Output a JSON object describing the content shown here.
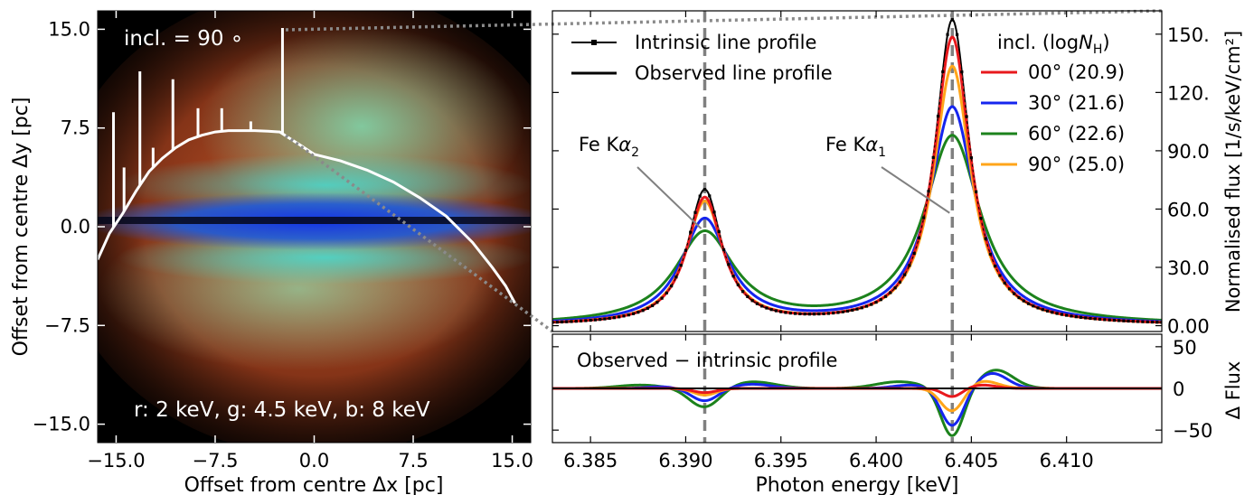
{
  "chart_data": [
    {
      "type": "image",
      "panel": "left",
      "xlabel": "Offset from centre Δx [pc]",
      "ylabel": "Offset from centre Δy [pc]",
      "xlim": [
        -16.4,
        16.4
      ],
      "ylim": [
        -16.4,
        16.4
      ],
      "xticks": [
        "−15.0",
        "−7.5",
        "0.0",
        "7.5",
        "15.0"
      ],
      "yticks": [
        "15.0",
        "7.5",
        "0.0",
        "−7.5",
        "−15.0"
      ],
      "annotations": {
        "inclination": "incl. = 90 ∘",
        "channels": "r: 2 keV, g: 4.5 keV, b: 8 keV"
      },
      "colors": {
        "red_channel": "#c0502a",
        "green_channel": "#66d6a8",
        "blue_channel": "#1a3fd6",
        "overlay_line": "#ffffff"
      },
      "overlay_profile": {
        "x": [
          -16.4,
          -15.5,
          -14.5,
          -13.5,
          -12.5,
          -11.5,
          -10.5,
          -9.5,
          -8.5,
          -7.5,
          -6.5,
          -5.5,
          -4.5,
          -3.5,
          -2.6,
          -2.0,
          -1.2,
          0.0,
          2.0,
          4.0,
          6.0,
          8.0,
          10.0,
          12.0,
          13.5,
          14.5,
          15.2
        ],
        "y": [
          -2.5,
          -0.5,
          1.0,
          2.7,
          4.2,
          5.2,
          6.0,
          6.6,
          6.95,
          7.2,
          7.3,
          7.3,
          7.3,
          7.25,
          7.2,
          6.8,
          6.3,
          5.5,
          5.0,
          4.3,
          3.4,
          2.2,
          0.8,
          -1.2,
          -3.1,
          -4.5,
          -5.8
        ]
      },
      "overlay_spikes": [
        {
          "x": -15.2,
          "y_top": 8.7
        },
        {
          "x": -14.4,
          "y_top": 4.5
        },
        {
          "x": -13.2,
          "y_top": 11.8
        },
        {
          "x": -12.2,
          "y_top": 6.0
        },
        {
          "x": -10.7,
          "y_top": 11.2
        },
        {
          "x": -8.8,
          "y_top": 9.0
        },
        {
          "x": -7.0,
          "y_top": 9.0
        },
        {
          "x": -4.8,
          "y_top": 8.0
        },
        {
          "x": -2.4,
          "y_top": 15.1
        }
      ]
    },
    {
      "type": "line",
      "panel": "top-right",
      "ylabel": "Normalised flux [1/s/keV/cm²]",
      "xlim": [
        6.383,
        6.415
      ],
      "ylim": [
        -3,
        162
      ],
      "yticks": [
        0,
        30,
        60,
        90,
        120,
        150
      ],
      "ytick_labels": [
        "0.00",
        "30.0",
        "60.0",
        "90.0",
        "120.",
        "150."
      ],
      "legend_left": [
        {
          "label": "Intrinsic line profile",
          "style": "line-with-square-markers"
        },
        {
          "label": "Observed line profile",
          "style": "line"
        }
      ],
      "legend_right_title": "incl. (logNH)",
      "annotations": [
        {
          "label": "Fe Kα2",
          "arrow_to": [
            6.391,
            50
          ]
        },
        {
          "label": "Fe Kα1",
          "arrow_to": [
            6.404,
            58
          ]
        }
      ],
      "vlines": [
        6.391,
        6.404
      ],
      "intrinsic": {
        "peaks": [
          {
            "center": 6.391,
            "height": 69,
            "hwhm": 0.0011
          },
          {
            "center": 6.404,
            "height": 157,
            "hwhm": 0.0011
          }
        ],
        "marker_step": 0.00025
      },
      "series": [
        {
          "name": "00° (20.9)",
          "color": "#e8191d",
          "peaks": [
            {
              "center": 6.391,
              "height": 65,
              "hwhm": 0.00115
            },
            {
              "center": 6.404,
              "height": 148,
              "hwhm": 0.00115
            }
          ]
        },
        {
          "name": "30° (21.6)",
          "color": "#1525ee",
          "peaks": [
            {
              "center": 6.391,
              "height": 54,
              "hwhm": 0.0015
            },
            {
              "center": 6.404,
              "height": 112,
              "hwhm": 0.00145
            }
          ]
        },
        {
          "name": "60° (22.6)",
          "color": "#1c821c",
          "peaks": [
            {
              "center": 6.391,
              "height": 47,
              "hwhm": 0.0019
            },
            {
              "center": 6.404,
              "height": 97,
              "hwhm": 0.0018
            }
          ]
        },
        {
          "name": "90° (25.0)",
          "color": "#ffa51a",
          "peaks": [
            {
              "center": 6.391,
              "height": 63,
              "hwhm": 0.0012
            },
            {
              "center": 6.404,
              "height": 133,
              "hwhm": 0.0012
            }
          ]
        }
      ]
    },
    {
      "type": "line",
      "panel": "bottom-right",
      "xlabel": "Photon energy [keV]",
      "ylabel": "Δ Flux",
      "annotation": "Observed − intrinsic profile",
      "xlim": [
        6.383,
        6.415
      ],
      "ylim": [
        -65,
        65
      ],
      "xticks": [
        6.385,
        6.39,
        6.395,
        6.4,
        6.405,
        6.41
      ],
      "xtick_labels": [
        "6.385",
        "6.390",
        "6.395",
        "6.400",
        "6.405",
        "6.410"
      ],
      "yticks": [
        50,
        0,
        -50
      ],
      "ytick_labels": [
        "50",
        "0",
        "−50"
      ],
      "vlines": [
        6.391,
        6.404
      ],
      "series": [
        {
          "name": "00° (20.9)",
          "color": "#e8191d",
          "features": [
            {
              "x": 6.391,
              "amp": -5,
              "sigma": 0.0006
            },
            {
              "x": 6.404,
              "amp": -10,
              "sigma": 0.0005
            },
            {
              "x": 6.4056,
              "amp": 4,
              "sigma": 0.0007
            }
          ]
        },
        {
          "name": "30° (21.6)",
          "color": "#1525ee",
          "features": [
            {
              "x": 6.391,
              "amp": -15,
              "sigma": 0.0007
            },
            {
              "x": 6.3887,
              "amp": 2,
              "sigma": 0.0008
            },
            {
              "x": 6.3935,
              "amp": 5,
              "sigma": 0.001
            },
            {
              "x": 6.404,
              "amp": -45,
              "sigma": 0.0006
            },
            {
              "x": 6.4018,
              "amp": 4,
              "sigma": 0.0009
            },
            {
              "x": 6.4061,
              "amp": 18,
              "sigma": 0.0008
            }
          ]
        },
        {
          "name": "60° (22.6)",
          "color": "#1c821c",
          "features": [
            {
              "x": 6.3876,
              "amp": 4,
              "sigma": 0.0012
            },
            {
              "x": 6.391,
              "amp": -23,
              "sigma": 0.0008
            },
            {
              "x": 6.3935,
              "amp": 8,
              "sigma": 0.0012
            },
            {
              "x": 6.4012,
              "amp": 8,
              "sigma": 0.0012
            },
            {
              "x": 6.404,
              "amp": -58,
              "sigma": 0.0006
            },
            {
              "x": 6.4063,
              "amp": 22,
              "sigma": 0.0009
            }
          ]
        },
        {
          "name": "90° (25.0)",
          "color": "#ffa51a",
          "features": [
            {
              "x": 6.391,
              "amp": -8,
              "sigma": 0.0006
            },
            {
              "x": 6.404,
              "amp": -28,
              "sigma": 0.0006
            },
            {
              "x": 6.4056,
              "amp": 9,
              "sigma": 0.0008
            }
          ]
        },
        {
          "name": "intrinsic",
          "color": "#000000",
          "features": []
        }
      ]
    }
  ]
}
